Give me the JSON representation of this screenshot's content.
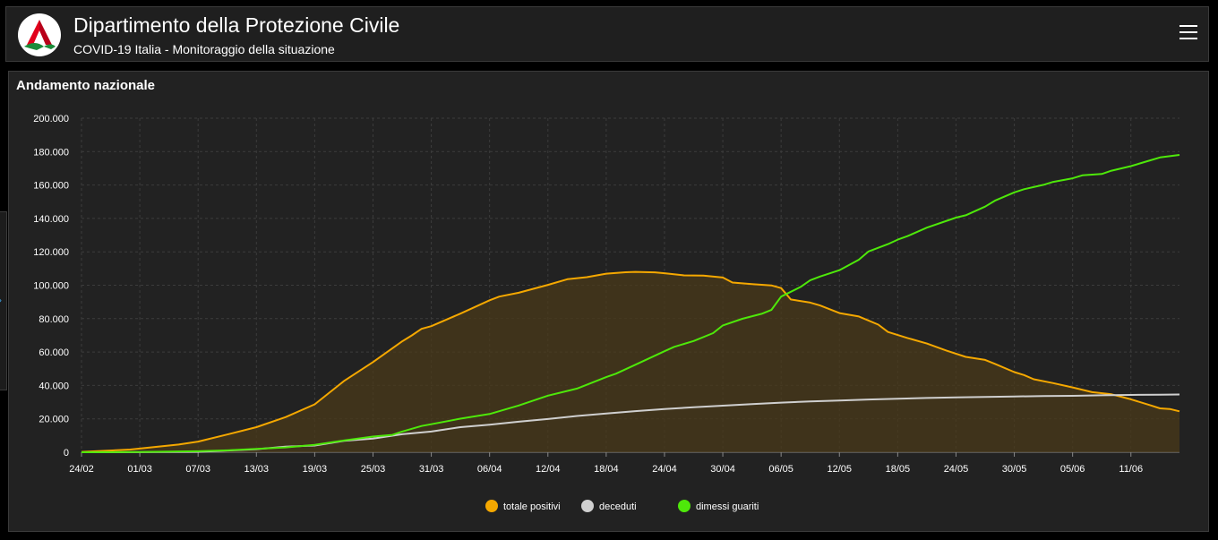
{
  "header": {
    "title": "Dipartimento della Protezione Civile",
    "subtitle": "COVID-19 Italia - Monitoraggio della situazione",
    "logo_icon": "protezione-civile-logo",
    "menu_icon": "hamburger-menu-icon"
  },
  "side_tab": {
    "icon": "chevron-right-icon",
    "glyph": "›"
  },
  "panel": {
    "title": "Andamento nazionale"
  },
  "colors": {
    "background": "#000000",
    "panel": "#222222",
    "grid": "#3c3c3c",
    "positivi": "#f5a800",
    "deceduti": "#cfcfcf",
    "guariti": "#4ee80a",
    "area_fill": "#4a3a1a"
  },
  "chart_data": {
    "type": "line",
    "title": "",
    "xlabel": "",
    "ylabel": "",
    "ylim": [
      0,
      200000
    ],
    "y_ticks": [
      "0",
      "20.000",
      "40.000",
      "60.000",
      "80.000",
      "100.000",
      "120.000",
      "140.000",
      "160.000",
      "180.000",
      "200.000"
    ],
    "x_ticks": [
      "24/02",
      "01/03",
      "07/03",
      "13/03",
      "19/03",
      "25/03",
      "31/03",
      "06/04",
      "12/04",
      "18/04",
      "24/04",
      "30/04",
      "06/05",
      "12/05",
      "18/05",
      "24/05",
      "30/05",
      "05/06",
      "11/06"
    ],
    "x_tick_days": [
      0,
      6,
      12,
      18,
      24,
      30,
      36,
      42,
      48,
      54,
      60,
      66,
      72,
      78,
      84,
      90,
      96,
      102,
      108
    ],
    "x_range_days": [
      0,
      113
    ],
    "grid": true,
    "legend_position": "bottom-center",
    "series": [
      {
        "name": "totale positivi",
        "key": "positivi",
        "filled": true,
        "points": [
          [
            0,
            220
          ],
          [
            5,
            1600
          ],
          [
            10,
            4600
          ],
          [
            12,
            6400
          ],
          [
            15,
            10600
          ],
          [
            18,
            15000
          ],
          [
            21,
            21000
          ],
          [
            24,
            28700
          ],
          [
            27,
            42600
          ],
          [
            30,
            54000
          ],
          [
            33,
            66400
          ],
          [
            34,
            70000
          ],
          [
            35,
            73900
          ],
          [
            36,
            75500
          ],
          [
            39,
            83000
          ],
          [
            42,
            91000
          ],
          [
            43,
            93200
          ],
          [
            45,
            95500
          ],
          [
            48,
            100200
          ],
          [
            50,
            103600
          ],
          [
            52,
            104800
          ],
          [
            54,
            106900
          ],
          [
            56,
            107800
          ],
          [
            57,
            108000
          ],
          [
            59,
            107700
          ],
          [
            60,
            107200
          ],
          [
            62,
            105900
          ],
          [
            64,
            105800
          ],
          [
            66,
            104600
          ],
          [
            67,
            101600
          ],
          [
            69,
            100700
          ],
          [
            71,
            99900
          ],
          [
            72,
            98300
          ],
          [
            73,
            91500
          ],
          [
            75,
            89600
          ],
          [
            76,
            87900
          ],
          [
            78,
            83300
          ],
          [
            80,
            81300
          ],
          [
            82,
            76400
          ],
          [
            83,
            72000
          ],
          [
            85,
            68400
          ],
          [
            87,
            65100
          ],
          [
            89,
            60900
          ],
          [
            91,
            57100
          ],
          [
            93,
            55300
          ],
          [
            94,
            52900
          ],
          [
            96,
            48000
          ],
          [
            97,
            46200
          ],
          [
            98,
            43700
          ],
          [
            100,
            41400
          ],
          [
            102,
            38800
          ],
          [
            104,
            36000
          ],
          [
            106,
            34700
          ],
          [
            108,
            31700
          ],
          [
            110,
            28100
          ],
          [
            111,
            26300
          ],
          [
            112,
            25900
          ],
          [
            113,
            24500
          ]
        ]
      },
      {
        "name": "deceduti",
        "key": "deceduti",
        "filled": false,
        "points": [
          [
            0,
            7
          ],
          [
            6,
            35
          ],
          [
            12,
            230
          ],
          [
            15,
            1000
          ],
          [
            18,
            1800
          ],
          [
            21,
            3400
          ],
          [
            24,
            4000
          ],
          [
            27,
            6800
          ],
          [
            30,
            8200
          ],
          [
            33,
            10800
          ],
          [
            36,
            12400
          ],
          [
            39,
            15000
          ],
          [
            42,
            16500
          ],
          [
            45,
            18300
          ],
          [
            48,
            19900
          ],
          [
            51,
            21700
          ],
          [
            54,
            23200
          ],
          [
            57,
            24600
          ],
          [
            60,
            25900
          ],
          [
            63,
            26900
          ],
          [
            66,
            27900
          ],
          [
            69,
            28800
          ],
          [
            72,
            29700
          ],
          [
            75,
            30400
          ],
          [
            78,
            31000
          ],
          [
            81,
            31600
          ],
          [
            84,
            32000
          ],
          [
            87,
            32500
          ],
          [
            90,
            32800
          ],
          [
            93,
            33100
          ],
          [
            96,
            33400
          ],
          [
            99,
            33600
          ],
          [
            102,
            33800
          ],
          [
            105,
            34100
          ],
          [
            108,
            34300
          ],
          [
            111,
            34500
          ],
          [
            113,
            34600
          ]
        ]
      },
      {
        "name": "dimessi guariti",
        "key": "guariti",
        "filled": false,
        "points": [
          [
            0,
            1
          ],
          [
            6,
            90
          ],
          [
            10,
            500
          ],
          [
            12,
            580
          ],
          [
            15,
            1100
          ],
          [
            18,
            2000
          ],
          [
            21,
            2900
          ],
          [
            24,
            4400
          ],
          [
            27,
            7000
          ],
          [
            30,
            9400
          ],
          [
            32,
            10400
          ],
          [
            33,
            12400
          ],
          [
            35,
            15700
          ],
          [
            36,
            16800
          ],
          [
            39,
            20100
          ],
          [
            42,
            22900
          ],
          [
            45,
            28000
          ],
          [
            48,
            33900
          ],
          [
            51,
            38100
          ],
          [
            54,
            45000
          ],
          [
            55,
            47000
          ],
          [
            57,
            52400
          ],
          [
            60,
            60500
          ],
          [
            61,
            63100
          ],
          [
            63,
            66600
          ],
          [
            65,
            71300
          ],
          [
            66,
            75900
          ],
          [
            68,
            79900
          ],
          [
            70,
            82900
          ],
          [
            71,
            85200
          ],
          [
            72,
            93200
          ],
          [
            74,
            99000
          ],
          [
            75,
            103000
          ],
          [
            76,
            105200
          ],
          [
            78,
            109000
          ],
          [
            80,
            115300
          ],
          [
            81,
            120200
          ],
          [
            83,
            124600
          ],
          [
            84,
            127300
          ],
          [
            85,
            129400
          ],
          [
            87,
            134500
          ],
          [
            90,
            140500
          ],
          [
            91,
            141900
          ],
          [
            93,
            147100
          ],
          [
            94,
            150600
          ],
          [
            96,
            155600
          ],
          [
            97,
            157500
          ],
          [
            99,
            160100
          ],
          [
            100,
            161900
          ],
          [
            102,
            164000
          ],
          [
            103,
            165800
          ],
          [
            105,
            166600
          ],
          [
            106,
            168600
          ],
          [
            108,
            171300
          ],
          [
            110,
            174800
          ],
          [
            111,
            176500
          ],
          [
            113,
            178000
          ]
        ]
      }
    ]
  }
}
